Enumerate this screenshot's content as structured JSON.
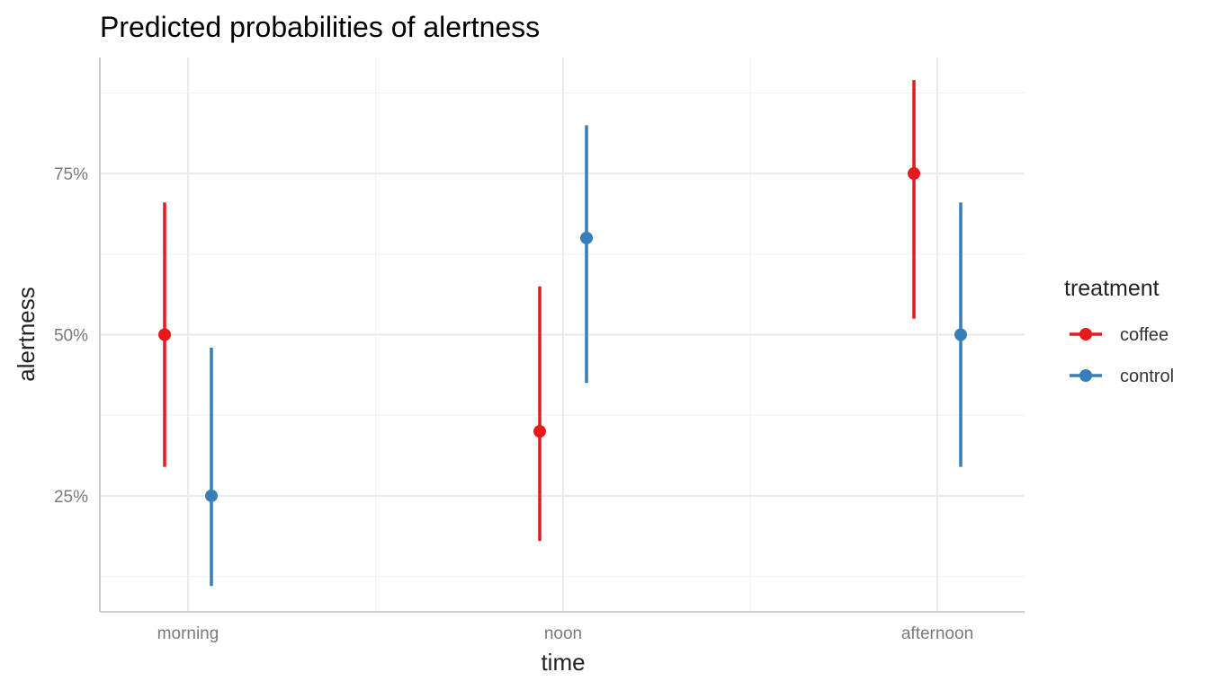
{
  "chart_data": {
    "type": "scatter",
    "title": "Predicted probabilities of alertness",
    "xlabel": "time",
    "ylabel": "alertness",
    "categories": [
      "morning",
      "noon",
      "afternoon"
    ],
    "y_ticks": [
      {
        "value": 0.25,
        "label": "25%"
      },
      {
        "value": 0.5,
        "label": "50%"
      },
      {
        "value": 0.75,
        "label": "75%"
      }
    ],
    "ylim": [
      0.07,
      0.93
    ],
    "grid": true,
    "legend": {
      "title": "treatment",
      "position": "right"
    },
    "series": [
      {
        "name": "coffee",
        "color": "#E41A1C",
        "values": [
          0.5,
          0.35,
          0.75
        ],
        "lower": [
          0.295,
          0.18,
          0.525
        ],
        "upper": [
          0.705,
          0.575,
          0.895
        ]
      },
      {
        "name": "control",
        "color": "#377EB8",
        "values": [
          0.25,
          0.65,
          0.5
        ],
        "lower": [
          0.11,
          0.425,
          0.295
        ],
        "upper": [
          0.48,
          0.825,
          0.705
        ]
      }
    ]
  }
}
